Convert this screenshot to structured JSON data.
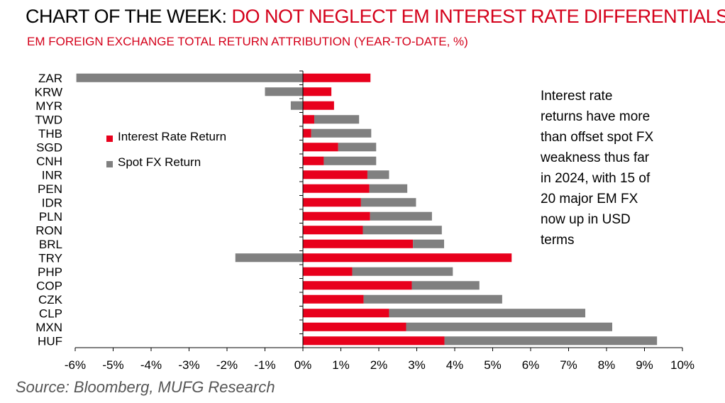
{
  "title": {
    "prefix": "CHART OF THE WEEK: ",
    "highlight": "DO NOT NEGLECT EM INTEREST RATE DIFFERENTIALS"
  },
  "subtitle": "EM FOREIGN EXCHANGE TOTAL RETURN ATTRIBUTION (YEAR-TO-DATE, %)",
  "source": "Source: Bloomberg, MUFG Research",
  "annotation": {
    "lines": [
      "Interest rate",
      "returns have more",
      "than offset spot FX",
      "weakness thus far",
      "in 2024, with 15 of",
      "20 major EM FX",
      "now up in USD",
      "terms"
    ]
  },
  "legend": {
    "items": [
      {
        "label": "Interest Rate Return",
        "color": "#e8001c"
      },
      {
        "label": "Spot FX Return",
        "color": "#808080"
      }
    ]
  },
  "chart_data": {
    "type": "bar",
    "orientation": "horizontal",
    "stacked": true,
    "title": "EM FOREIGN EXCHANGE TOTAL RETURN ATTRIBUTION (YEAR-TO-DATE, %)",
    "categories": [
      "ZAR",
      "KRW",
      "MYR",
      "TWD",
      "THB",
      "SGD",
      "CNH",
      "INR",
      "PEN",
      "IDR",
      "PLN",
      "RON",
      "BRL",
      "TRY",
      "PHP",
      "COP",
      "CZK",
      "CLP",
      "MXN",
      "HUF"
    ],
    "series": [
      {
        "name": "Interest Rate Return",
        "color": "#e8001c",
        "values": [
          1.78,
          0.75,
          0.82,
          0.3,
          0.22,
          0.93,
          0.55,
          1.7,
          1.75,
          1.53,
          1.77,
          1.58,
          2.9,
          5.5,
          1.3,
          2.87,
          1.6,
          2.27,
          2.72,
          3.73
        ]
      },
      {
        "name": "Spot FX Return",
        "color": "#808080",
        "values": [
          -5.97,
          -1.0,
          -0.32,
          1.18,
          1.58,
          1.0,
          1.38,
          0.57,
          1.0,
          1.45,
          1.63,
          2.08,
          0.82,
          -1.78,
          2.65,
          1.78,
          3.65,
          5.17,
          5.43,
          5.6
        ]
      }
    ],
    "xlim": [
      -6,
      10
    ],
    "xticks": [
      "-6%",
      "-5%",
      "-4%",
      "-3%",
      "-2%",
      "-1%",
      "0%",
      "1%",
      "2%",
      "3%",
      "4%",
      "5%",
      "6%",
      "7%",
      "8%",
      "9%",
      "10%"
    ],
    "grid": false,
    "legend_position": "upper-left"
  }
}
